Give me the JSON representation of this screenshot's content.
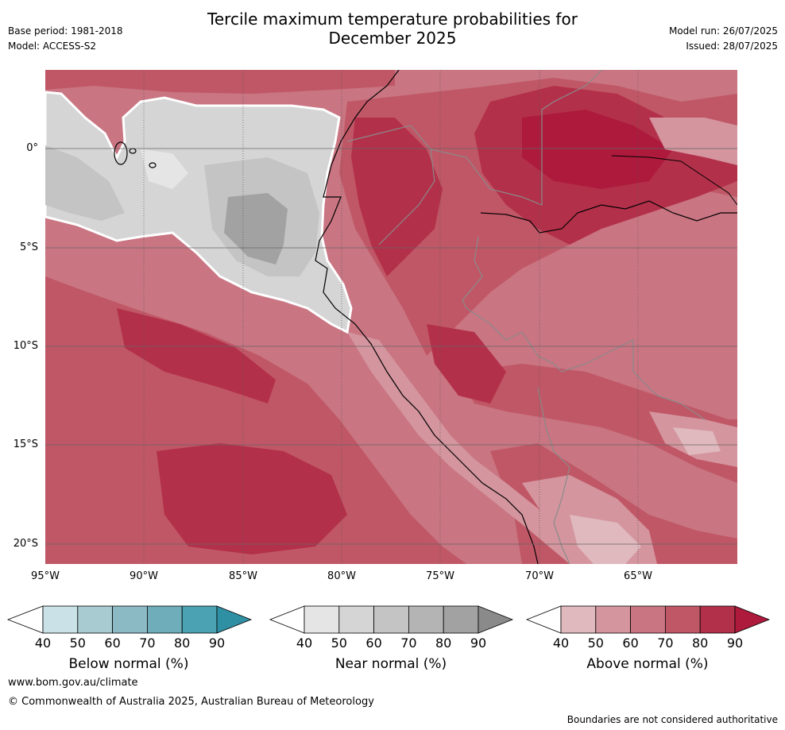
{
  "title_line1": "Tercile maximum temperature probabilities for",
  "title_line2": "December 2025",
  "header": {
    "base_period": "Base period: 1981-2018",
    "model": "Model: ACCESS-S2",
    "model_run": "Model run: 26/07/2025",
    "issued": "Issued: 28/07/2025"
  },
  "axes": {
    "lat_labels": [
      "0°",
      "5°S",
      "10°S",
      "15°S",
      "20°S"
    ],
    "lon_labels": [
      "95°W",
      "90°W",
      "85°W",
      "80°W",
      "75°W",
      "70°W",
      "65°W"
    ]
  },
  "colorbars": {
    "below": {
      "title": "Below normal (%)",
      "ticks": [
        "40",
        "50",
        "60",
        "70",
        "80",
        "90"
      ],
      "colors": [
        "#ffffff",
        "#c9e1e7",
        "#a8cad1",
        "#8bb9c4",
        "#6eadb9",
        "#4aa2b2",
        "#2f90a4"
      ]
    },
    "near": {
      "title": "Near normal (%)",
      "ticks": [
        "40",
        "50",
        "60",
        "70",
        "80",
        "90"
      ],
      "colors": [
        "#ffffff",
        "#e5e5e5",
        "#d5d5d5",
        "#c4c4c4",
        "#b4b4b4",
        "#a2a2a2",
        "#8a8a8a"
      ]
    },
    "above": {
      "title": "Above normal (%)",
      "ticks": [
        "40",
        "50",
        "60",
        "70",
        "80",
        "90"
      ],
      "colors": [
        "#ffffff",
        "#e0b9bf",
        "#d4959e",
        "#c97582",
        "#c05766",
        "#b3304a",
        "#ad1a3c"
      ]
    }
  },
  "footer": {
    "url": "www.bom.gov.au/climate",
    "copyright": "© Commonwealth of Australia 2025, Australian Bureau of Meteorology",
    "note": "Boundaries are not considered authoritative"
  }
}
